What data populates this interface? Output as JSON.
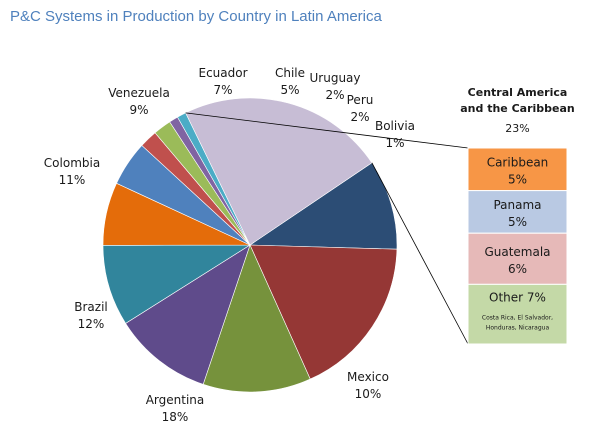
{
  "chart_data": {
    "type": "pie",
    "title": "P&C Systems in Production by Country in Latin America",
    "value_suffix": "%",
    "slices": [
      {
        "label": "Mexico",
        "value": 10,
        "color": "#2c4d75"
      },
      {
        "label": "Argentina",
        "value": 18,
        "color": "#953735"
      },
      {
        "label": "Brazil",
        "value": 12,
        "color": "#76923c"
      },
      {
        "label": "Colombia",
        "value": 11,
        "color": "#5f4b8b"
      },
      {
        "label": "Venezuela",
        "value": 9,
        "color": "#31859c"
      },
      {
        "label": "Ecuador",
        "value": 7,
        "color": "#e46c0a"
      },
      {
        "label": "Chile",
        "value": 5,
        "color": "#4f81bd"
      },
      {
        "label": "Uruguay",
        "value": 2,
        "color": "#c0504d"
      },
      {
        "label": "Peru",
        "value": 2,
        "color": "#9bbb59"
      },
      {
        "label": "Bolivia",
        "value": 1,
        "color": "#8064a2"
      },
      {
        "label": "",
        "value": 1,
        "color": "#4bacc6"
      },
      {
        "label": "Central America and the Caribbean",
        "value": 23,
        "color": "#c7bdd5"
      }
    ],
    "breakdown": {
      "label": "Central America and the Caribbean",
      "value": 23,
      "items": [
        {
          "label": "Caribbean",
          "value": 5,
          "color": "#f79646"
        },
        {
          "label": "Panama",
          "value": 5,
          "color": "#b9c9e3"
        },
        {
          "label": "Guatemala",
          "value": 6,
          "color": "#e6b9b8"
        },
        {
          "label": "Other",
          "value": 7,
          "color": "#c4d9a7",
          "note": "Costa Rica, El Salvador, Honduras, Nicaragua"
        }
      ]
    }
  }
}
